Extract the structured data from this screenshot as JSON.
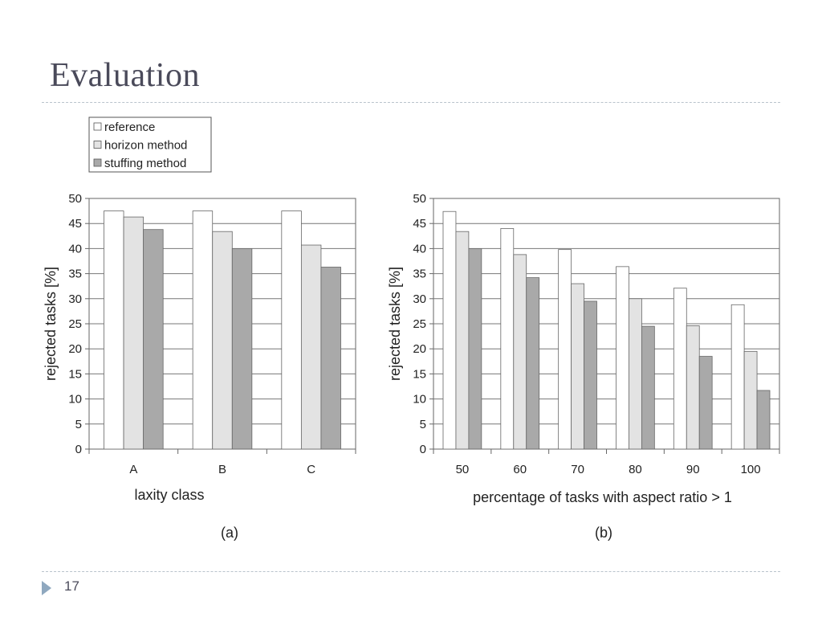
{
  "slide": {
    "title": "Evaluation",
    "page_number": "17"
  },
  "legend": [
    {
      "label": "reference",
      "color": "#ffffff"
    },
    {
      "label": "horizon method",
      "color": "#e3e3e3"
    },
    {
      "label": "stuffing method",
      "color": "#a9a9a9"
    }
  ],
  "chart_data": [
    {
      "type": "bar",
      "caption": "(a)",
      "categories": [
        "A",
        "B",
        "C"
      ],
      "series": [
        {
          "name": "reference",
          "values": [
            47.5,
            47.5,
            47.5
          ]
        },
        {
          "name": "horizon method",
          "values": [
            46.3,
            43.4,
            40.7
          ]
        },
        {
          "name": "stuffing method",
          "values": [
            43.8,
            40.0,
            36.3
          ]
        }
      ],
      "xlabel": "laxity class",
      "ylabel": "rejected tasks [%]",
      "ylim": [
        0,
        50
      ],
      "yticks": [
        0,
        5,
        10,
        15,
        20,
        25,
        30,
        35,
        40,
        45,
        50
      ],
      "grid": true,
      "legend": "top-left"
    },
    {
      "type": "bar",
      "caption": "(b)",
      "categories": [
        "50",
        "60",
        "70",
        "80",
        "90",
        "100"
      ],
      "series": [
        {
          "name": "reference",
          "values": [
            47.4,
            44.0,
            39.8,
            36.4,
            32.1,
            28.8
          ]
        },
        {
          "name": "horizon method",
          "values": [
            43.4,
            38.8,
            33.0,
            30.0,
            24.6,
            19.5
          ]
        },
        {
          "name": "stuffing method",
          "values": [
            40.0,
            34.2,
            29.5,
            24.5,
            18.5,
            11.7
          ]
        }
      ],
      "xlabel": "percentage of tasks with aspect ratio > 1",
      "ylabel": "rejected tasks [%]",
      "ylim": [
        0,
        50
      ],
      "yticks": [
        0,
        5,
        10,
        15,
        20,
        25,
        30,
        35,
        40,
        45,
        50
      ],
      "grid": true
    }
  ]
}
